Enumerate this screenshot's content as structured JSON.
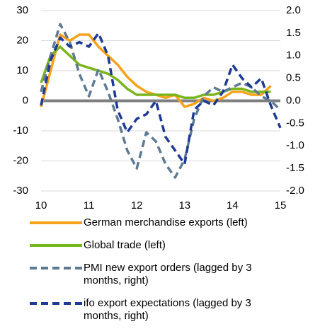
{
  "chart_data": {
    "type": "line",
    "x": [
      10,
      10.2,
      10.4,
      10.6,
      10.8,
      11,
      11.2,
      11.4,
      11.6,
      11.8,
      12,
      12.2,
      12.4,
      12.6,
      12.8,
      13,
      13.2,
      13.4,
      13.6,
      13.8,
      14,
      14.2,
      14.4,
      14.6,
      14.8,
      15
    ],
    "series": [
      {
        "name": "German merchandise exports (left)",
        "color": "#f7a21b",
        "dash": false,
        "values": [
          -2,
          10,
          22,
          20,
          22,
          22,
          18,
          15,
          12,
          8,
          5,
          3,
          2,
          1,
          2,
          -2,
          -1,
          1,
          0,
          1,
          3,
          3,
          2,
          2,
          5,
          null
        ]
      },
      {
        "name": "Global trade (left)",
        "color": "#7ab51d",
        "dash": false,
        "values": [
          6,
          15,
          18,
          15,
          12,
          11,
          10,
          9,
          7,
          4,
          2,
          2,
          2,
          2,
          2,
          1,
          1,
          2,
          2,
          3,
          4,
          4,
          3,
          3,
          3,
          null
        ]
      },
      {
        "name": "PMI new export orders (lagged by 3 months, right)",
        "color": "#5f7a93",
        "dash": true,
        "axis": "y2",
        "values": [
          0.2,
          1.0,
          1.7,
          1.3,
          0.6,
          0.1,
          0.7,
          0.2,
          -0.4,
          -1.1,
          -1.5,
          -0.7,
          -0.9,
          -1.4,
          -1.7,
          -1.3,
          -0.4,
          0.1,
          0.3,
          0.2,
          0.3,
          0.4,
          0.3,
          0.1,
          0.0,
          -0.2
        ]
      },
      {
        "name": "ifo export expectations (lagged by 3 months, right)",
        "color": "#1f3a93",
        "dash": true,
        "axis": "y2",
        "values": [
          -0.1,
          0.9,
          1.4,
          1.2,
          1.3,
          1.2,
          1.5,
          1.0,
          -0.2,
          -0.7,
          -0.4,
          -0.3,
          0.0,
          -0.8,
          -1.1,
          -1.4,
          -0.2,
          0.0,
          -0.1,
          0.2,
          0.8,
          0.5,
          0.3,
          0.5,
          -0.1,
          -0.6
        ]
      }
    ],
    "xlim": [
      10,
      15
    ],
    "xticks": [
      10,
      11,
      12,
      13,
      14,
      15
    ],
    "ylim": [
      -30,
      30
    ],
    "yticks": [
      -30,
      -20,
      -10,
      0,
      10,
      20,
      30
    ],
    "y2lim": [
      -2,
      2
    ],
    "y2ticks": [
      {
        "value": -2,
        "label": "-2.0"
      },
      -1.5,
      {
        "value": -1,
        "label": "-1.0"
      },
      -0.5,
      {
        "value": 0,
        "label": "0.0"
      },
      0.5,
      {
        "value": 1,
        "label": "1.0"
      },
      1.5,
      {
        "value": 2,
        "label": "2.0"
      }
    ],
    "grid": true
  }
}
